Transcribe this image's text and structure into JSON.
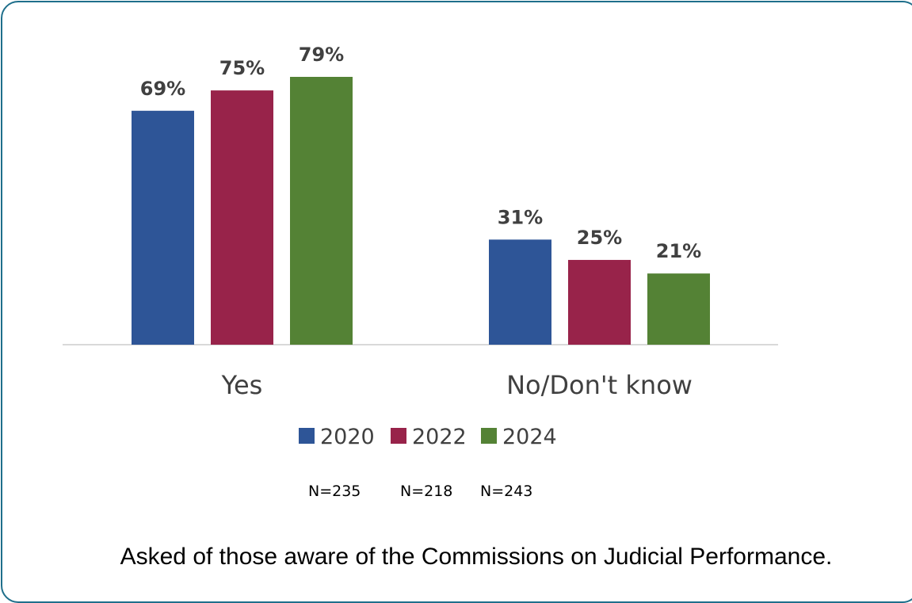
{
  "chart_data": {
    "type": "bar",
    "categories": [
      "Yes",
      "No/Don't know"
    ],
    "series": [
      {
        "name": "2020",
        "values": [
          69,
          31
        ],
        "color": "#2e5597"
      },
      {
        "name": "2022",
        "values": [
          75,
          25
        ],
        "color": "#98234a"
      },
      {
        "name": "2024",
        "values": [
          79,
          21
        ],
        "color": "#548235"
      }
    ],
    "value_suffix": "%",
    "ylim": [
      0,
      79
    ],
    "axis_color": "#d9d9d9",
    "legend_placement": "bottom",
    "sample_sizes": [
      "N=235",
      "N=218",
      "N=243"
    ]
  },
  "note": "Asked of those aware of the Commissions on Judicial Performance."
}
